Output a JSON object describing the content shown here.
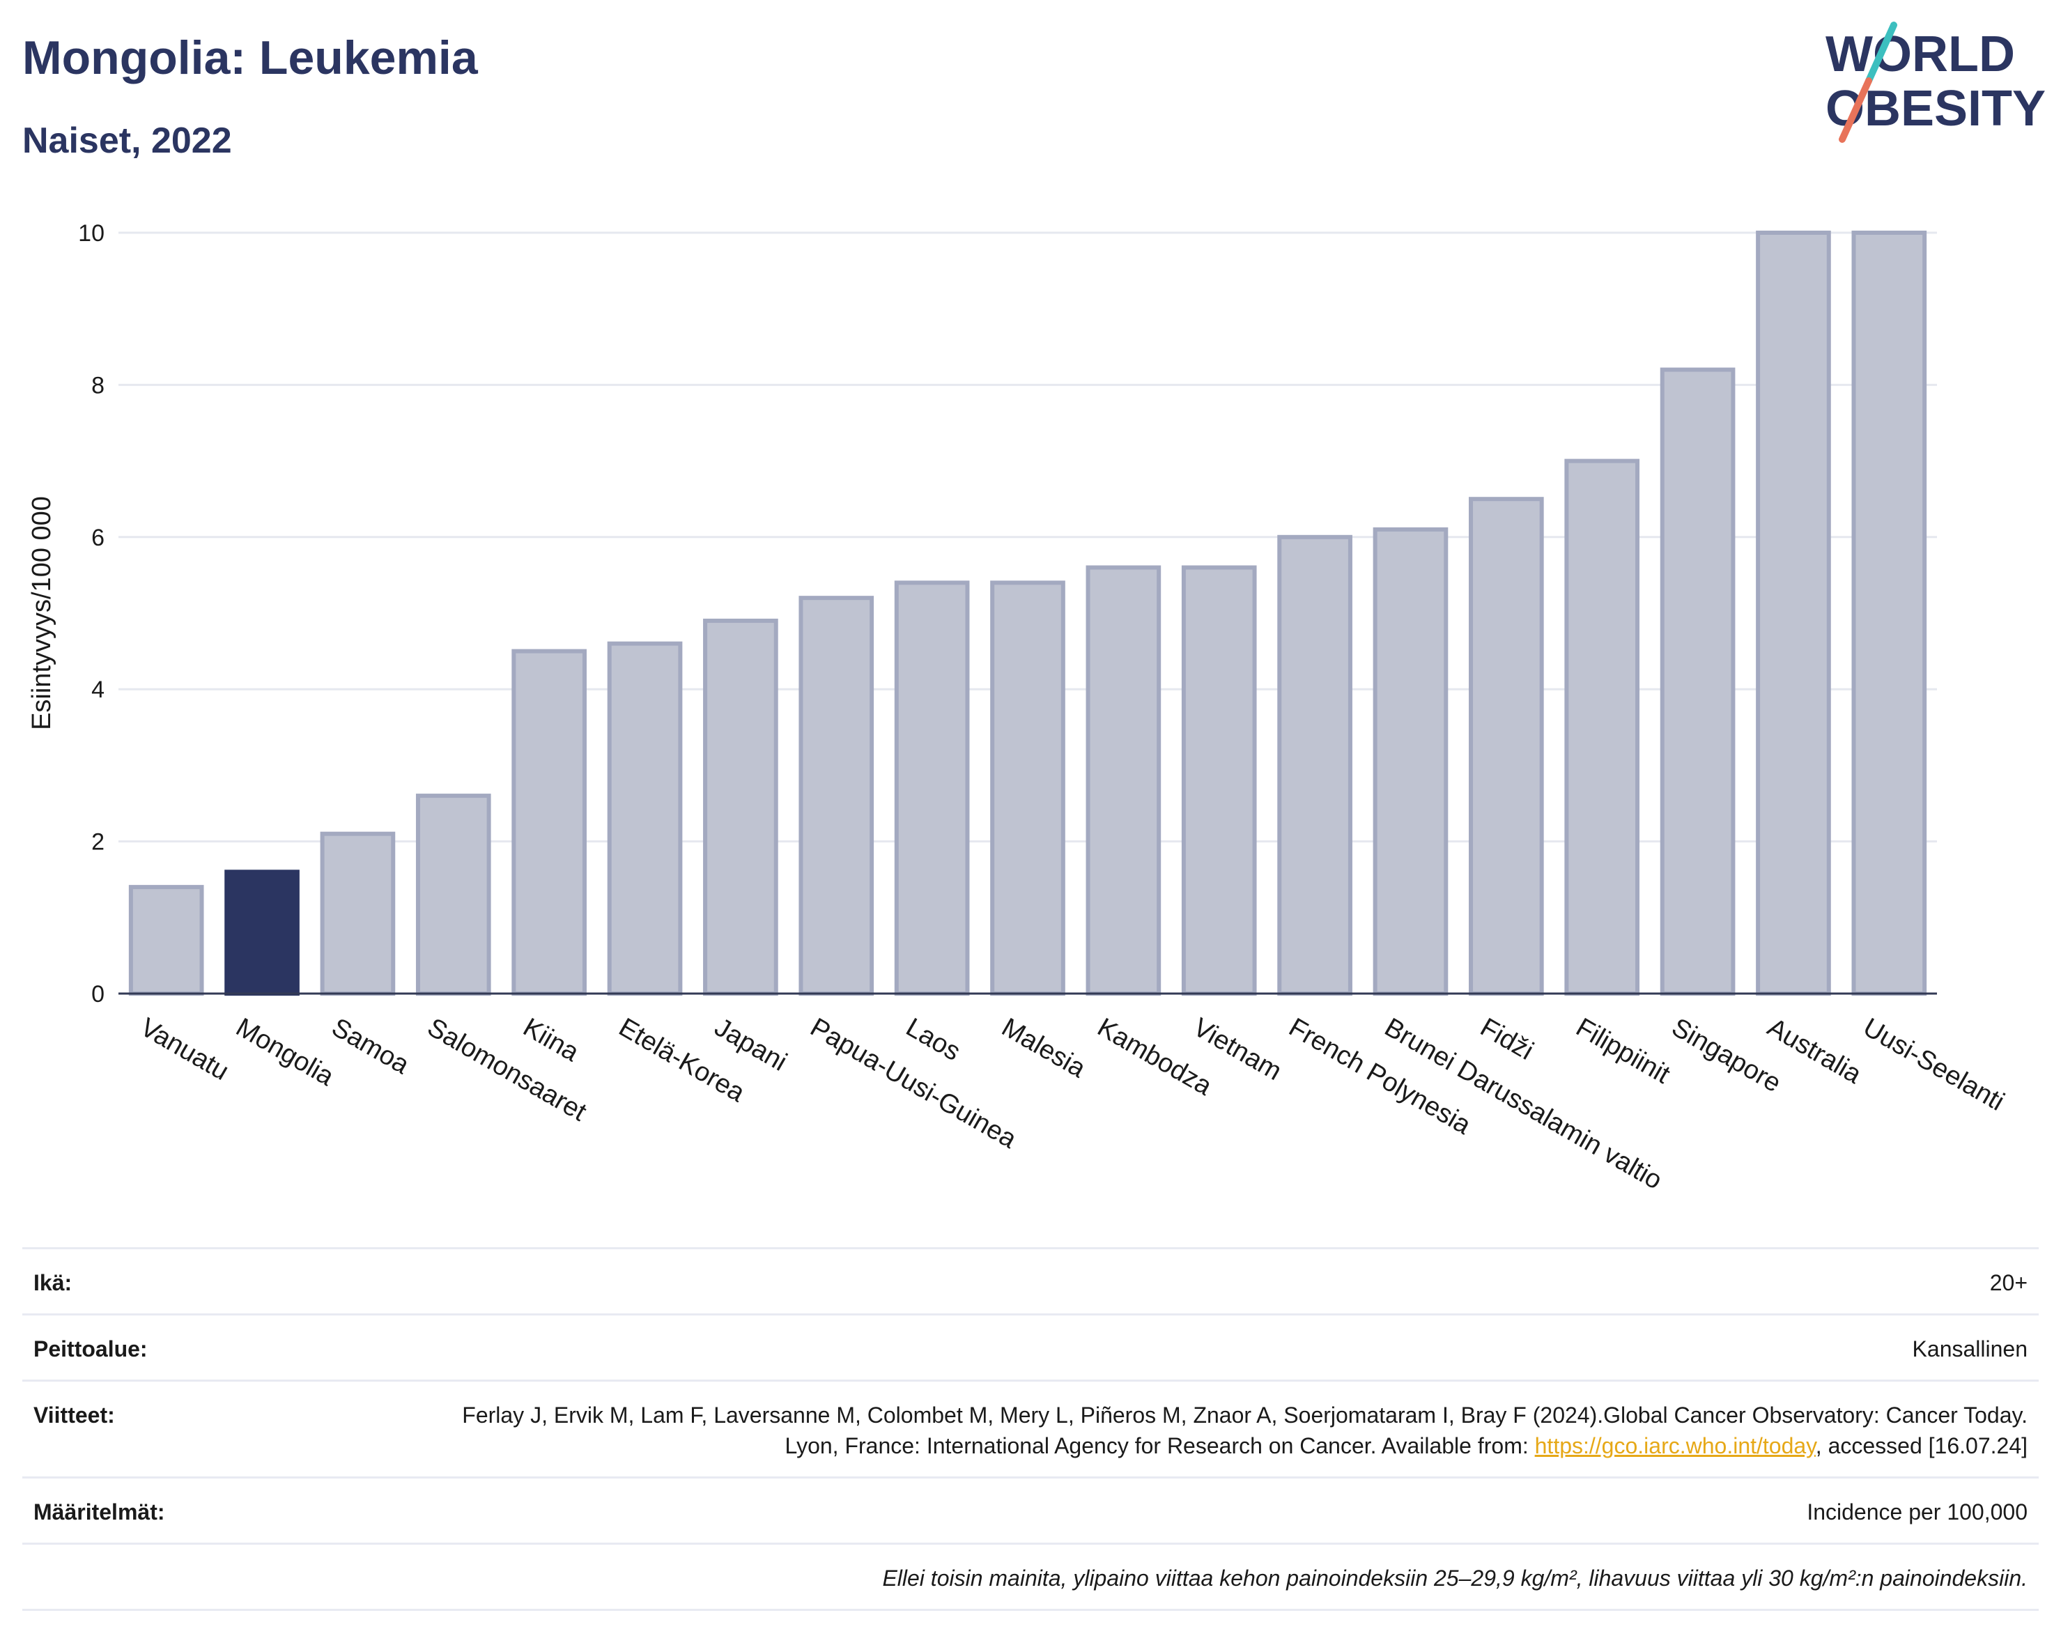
{
  "header": {
    "title": "Mongolia: Leukemia",
    "subtitle": "Naiset, 2022"
  },
  "logo": {
    "line1": "WORLD",
    "line2": "OBESITY",
    "colors": {
      "text": "#2b3561",
      "slash_teal": "#3cbfbf",
      "slash_coral": "#e8735a"
    }
  },
  "chart_data": {
    "type": "bar",
    "ylabel": "Esiintyvyys/100 000",
    "xlabel": "",
    "ylim": [
      0,
      10
    ],
    "yticks": [
      0,
      2,
      4,
      6,
      8,
      10
    ],
    "grid": true,
    "highlight": "Mongolia",
    "colors": {
      "bar": "#bfc3d1",
      "bar_edge": "#a3a9c0",
      "highlight": "#2b3561"
    },
    "categories": [
      "Vanuatu",
      "Mongolia",
      "Samoa",
      "Salomonsaaret",
      "Kiina",
      "Etelä-Korea",
      "Japani",
      "Papua-Uusi-Guinea",
      "Laos",
      "Malesia",
      "Kambodza",
      "Vietnam",
      "French Polynesia",
      "Brunei Darussalamin valtio",
      "Fidži",
      "Filippiinit",
      "Singapore",
      "Australia",
      "Uusi-Seelanti"
    ],
    "values": [
      1.4,
      1.6,
      2.1,
      2.6,
      4.5,
      4.6,
      4.9,
      5.2,
      5.4,
      5.4,
      5.6,
      5.6,
      6.0,
      6.1,
      6.5,
      7.0,
      8.2,
      10.0,
      10.0
    ]
  },
  "footer": {
    "age_label": "Ikä:",
    "age_value": "20+",
    "coverage_label": "Peittoalue:",
    "coverage_value": "Kansallinen",
    "refs_label": "Viitteet:",
    "refs_text_1": "Ferlay J, Ervik M, Lam F, Laversanne M, Colombet M, Mery L, Piñeros M, Znaor A, Soerjomataram I, Bray F (2024).Global Cancer Observatory: Cancer Today. Lyon, France: International Agency for Research on Cancer. Available from: ",
    "refs_link": "https://gco.iarc.who.int/today",
    "refs_text_2": ", accessed [16.07.24]",
    "defs_label": "Määritelmät:",
    "defs_value": "Incidence per 100,000",
    "note": "Ellei toisin mainita, ylipaino viittaa kehon painoindeksiin 25–29,9 kg/m², lihavuus viittaa yli 30 kg/m²:n painoindeksiin."
  }
}
